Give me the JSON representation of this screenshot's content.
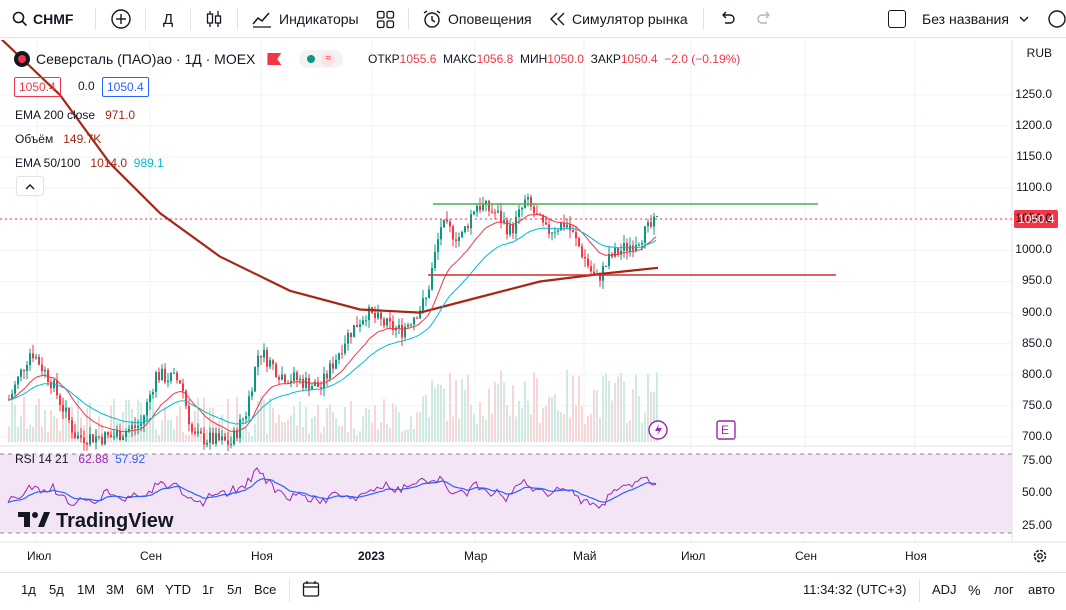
{
  "toolbar": {
    "symbol": "CHMF",
    "interval": "Д",
    "indicators": "Индикаторы",
    "alerts": "Оповещения",
    "replay": "Симулятор рынка",
    "layout_name": "Без названия"
  },
  "legend": {
    "title": "Северсталь (ПАО)ао · 1Д · MOEX",
    "open_label": "ОТКР",
    "open": "1055.6",
    "high_label": "МАКС",
    "high": "1056.8",
    "low_label": "МИН",
    "low": "1050.0",
    "close_label": "ЗАКР",
    "close": "1050.4",
    "change": "−2.0 (−0.19%)",
    "bid": "1050.4",
    "spread": "0.0",
    "ask": "1050.4"
  },
  "indicators": [
    {
      "name": "EMA 200 close",
      "values": [
        "971.0"
      ],
      "colors": [
        "#a52714"
      ]
    },
    {
      "name": "Объём",
      "values": [
        "149.7K"
      ],
      "colors": [
        "#a52714"
      ]
    },
    {
      "name": "EMA 50/100",
      "values": [
        "1014.0",
        "989.1"
      ],
      "colors": [
        "#a52714",
        "#00bcd4"
      ]
    }
  ],
  "rsi": {
    "name": "RSI",
    "params": "14 21",
    "values": [
      "62.88",
      "57.92"
    ],
    "colors": [
      "#9c27b0",
      "#2962ff"
    ]
  },
  "price_scale": {
    "currency": "RUB",
    "labels": [
      "1250.0",
      "1200.0",
      "1150.0",
      "1100.0",
      "1050.0",
      "1000.0",
      "950.0",
      "900.0",
      "850.0",
      "800.0",
      "750.0",
      "700.0"
    ],
    "last_price": "1050.4"
  },
  "rsi_scale": {
    "labels": [
      "75.00",
      "50.00",
      "25.00"
    ]
  },
  "time_scale": {
    "labels": [
      "Июл",
      "Сен",
      "Ноя",
      "2023",
      "Мар",
      "Май",
      "Июл",
      "Сен",
      "Ноя"
    ]
  },
  "watermark": "TradingView",
  "markers": {
    "earnings": "E"
  },
  "bottom": {
    "ranges": [
      "1д",
      "5д",
      "1М",
      "3М",
      "6М",
      "YTD",
      "1г",
      "5л",
      "Все"
    ],
    "clock": "11:34:32 (UTC+3)",
    "adj": "ADJ",
    "percent": "%",
    "log": "лог",
    "auto": "авто"
  },
  "colors": {
    "up": "#089981",
    "down": "#f23645",
    "ema200": "#a52714",
    "ema50": "#f23645",
    "ema100": "#00bcd4",
    "resistance": "#4caf50",
    "support": "#d32f2f",
    "rsi_bg": "#f3e5f5"
  }
}
